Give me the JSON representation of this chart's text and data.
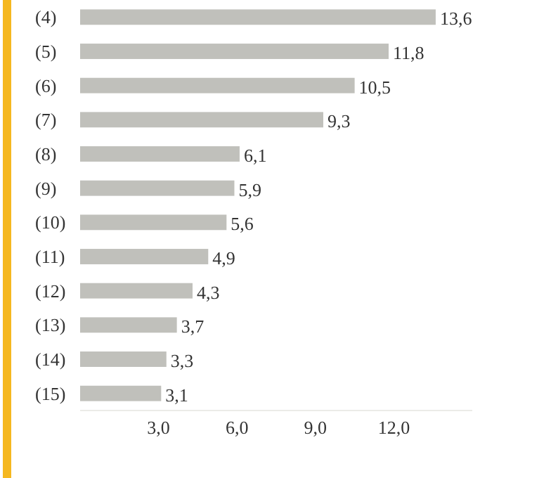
{
  "chart_data": {
    "type": "bar",
    "orientation": "horizontal",
    "categories": [
      "(4)",
      "(5)",
      "(6)",
      "(7)",
      "(8)",
      "(9)",
      "(10)",
      "(11)",
      "(12)",
      "(13)",
      "(14)",
      "(15)"
    ],
    "values": [
      13.6,
      11.8,
      10.5,
      9.3,
      6.1,
      5.9,
      5.6,
      4.9,
      4.3,
      3.7,
      3.3,
      3.1
    ],
    "value_labels": [
      "13,6",
      "11,8",
      "10,5",
      "9,3",
      "6,1",
      "5,9",
      "5,6",
      "4,9",
      "4,3",
      "3,7",
      "3,3",
      "3,1"
    ],
    "color": "#c0c0bb",
    "xlim": [
      0,
      15
    ],
    "xticks": [
      {
        "value": 3,
        "label": "3,0"
      },
      {
        "value": 6,
        "label": "6,0"
      },
      {
        "value": 9,
        "label": "9,0"
      },
      {
        "value": 12,
        "label": "12,0"
      }
    ],
    "grid": false
  }
}
